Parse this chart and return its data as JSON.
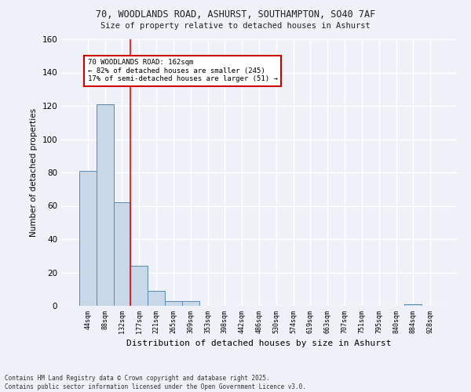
{
  "title_line1": "70, WOODLANDS ROAD, ASHURST, SOUTHAMPTON, SO40 7AF",
  "title_line2": "Size of property relative to detached houses in Ashurst",
  "xlabel": "Distribution of detached houses by size in Ashurst",
  "ylabel": "Number of detached properties",
  "categories": [
    "44sqm",
    "88sqm",
    "132sqm",
    "177sqm",
    "221sqm",
    "265sqm",
    "309sqm",
    "353sqm",
    "398sqm",
    "442sqm",
    "486sqm",
    "530sqm",
    "574sqm",
    "619sqm",
    "663sqm",
    "707sqm",
    "751sqm",
    "795sqm",
    "840sqm",
    "884sqm",
    "928sqm"
  ],
  "values": [
    81,
    121,
    62,
    24,
    9,
    3,
    3,
    0,
    0,
    0,
    0,
    0,
    0,
    0,
    0,
    0,
    0,
    0,
    0,
    1,
    0
  ],
  "bar_color": "#c8d8e8",
  "bar_edge_color": "#5a8ab0",
  "background_color": "#eef2f8",
  "grid_color": "#ffffff",
  "red_line_x": 2.5,
  "annotation_text": "70 WOODLANDS ROAD: 162sqm\n← 82% of detached houses are smaller (245)\n17% of semi-detached houses are larger (51) →",
  "annotation_box_color": "#ffffff",
  "annotation_box_edge": "#cc0000",
  "ylim": [
    0,
    160
  ],
  "yticks": [
    0,
    20,
    40,
    60,
    80,
    100,
    120,
    140,
    160
  ],
  "footer_line1": "Contains HM Land Registry data © Crown copyright and database right 2025.",
  "footer_line2": "Contains public sector information licensed under the Open Government Licence v3.0."
}
